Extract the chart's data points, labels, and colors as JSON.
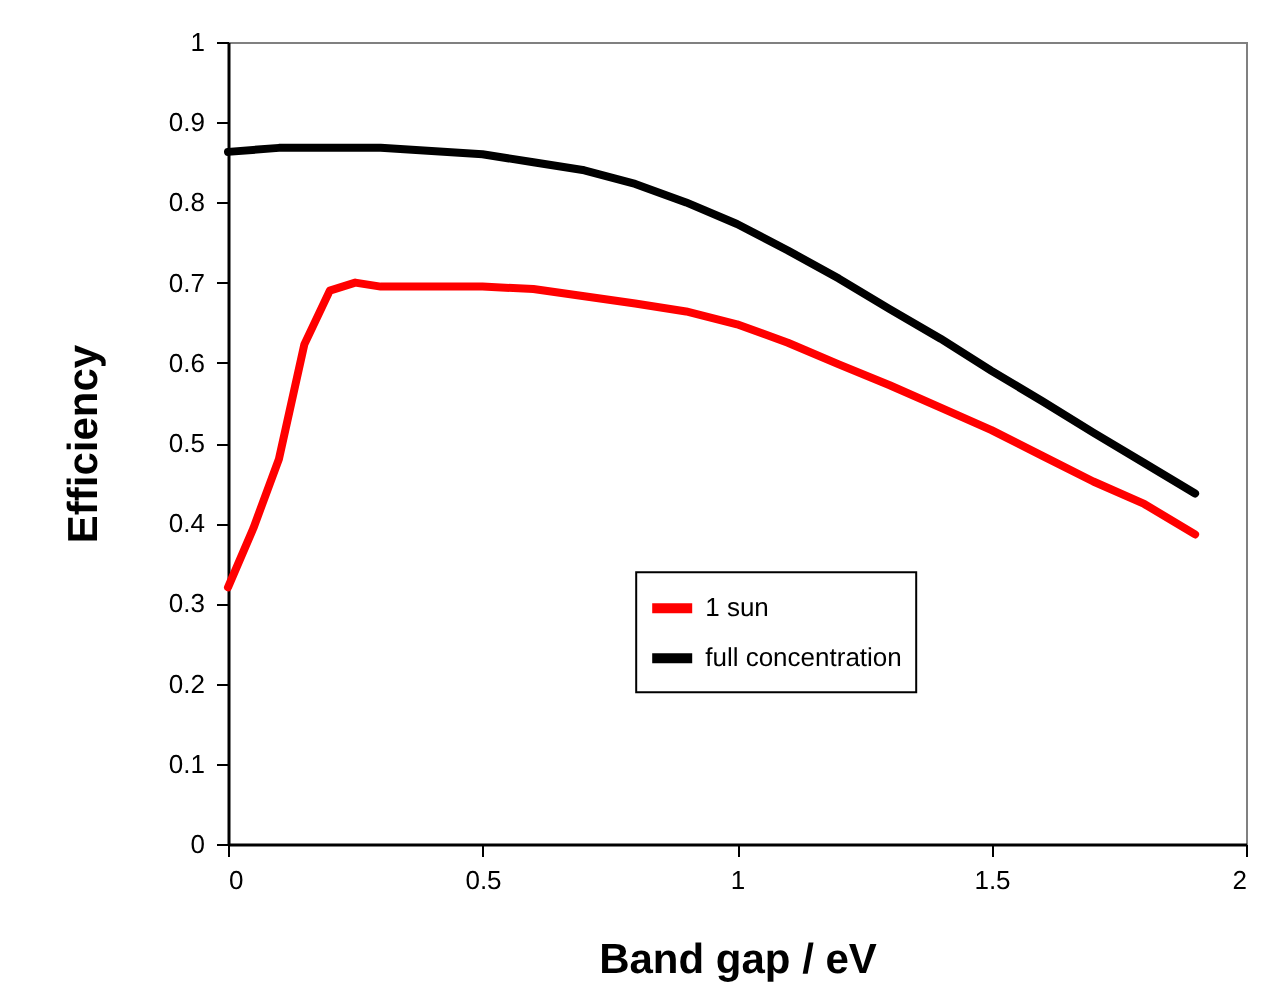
{
  "chart_data": {
    "type": "line",
    "xlabel": "Band gap / eV",
    "ylabel": "Efficiency",
    "xlim": [
      0,
      2
    ],
    "xticks": [
      0,
      0.5,
      1,
      1.5,
      2
    ],
    "ylim": [
      0,
      1
    ],
    "yticks": [
      0,
      0.1,
      0.2,
      0.3,
      0.4,
      0.5,
      0.6,
      0.7,
      0.8,
      0.9,
      1
    ],
    "grid": false,
    "legend": "bottom",
    "marker": "none",
    "line_style": "solid",
    "series": [
      {
        "name": "1 sun",
        "color": "#ff0000",
        "x": [
          0,
          0.05,
          0.1,
          0.15,
          0.2,
          0.25,
          0.3,
          0.4,
          0.5,
          0.6,
          0.7,
          0.8,
          0.9,
          1.0,
          1.1,
          1.2,
          1.3,
          1.4,
          1.5,
          1.6,
          1.7,
          1.8,
          1.9
        ],
        "values": [
          0.32,
          0.394,
          0.48,
          0.623,
          0.69,
          0.7,
          0.695,
          0.695,
          0.695,
          0.692,
          0.683,
          0.674,
          0.664,
          0.648,
          0.625,
          0.598,
          0.572,
          0.544,
          0.516,
          0.484,
          0.452,
          0.424,
          0.386
        ]
      },
      {
        "name": "full concentration",
        "color": "#000000",
        "x": [
          0,
          0.1,
          0.2,
          0.3,
          0.4,
          0.5,
          0.6,
          0.7,
          0.8,
          0.9,
          1.0,
          1.1,
          1.2,
          1.3,
          1.4,
          1.5,
          1.6,
          1.7,
          1.8,
          1.9
        ],
        "values": [
          0.863,
          0.868,
          0.868,
          0.868,
          0.864,
          0.86,
          0.85,
          0.84,
          0.823,
          0.8,
          0.773,
          0.74,
          0.705,
          0.667,
          0.63,
          0.59,
          0.552,
          0.513,
          0.475,
          0.437
        ]
      }
    ]
  }
}
